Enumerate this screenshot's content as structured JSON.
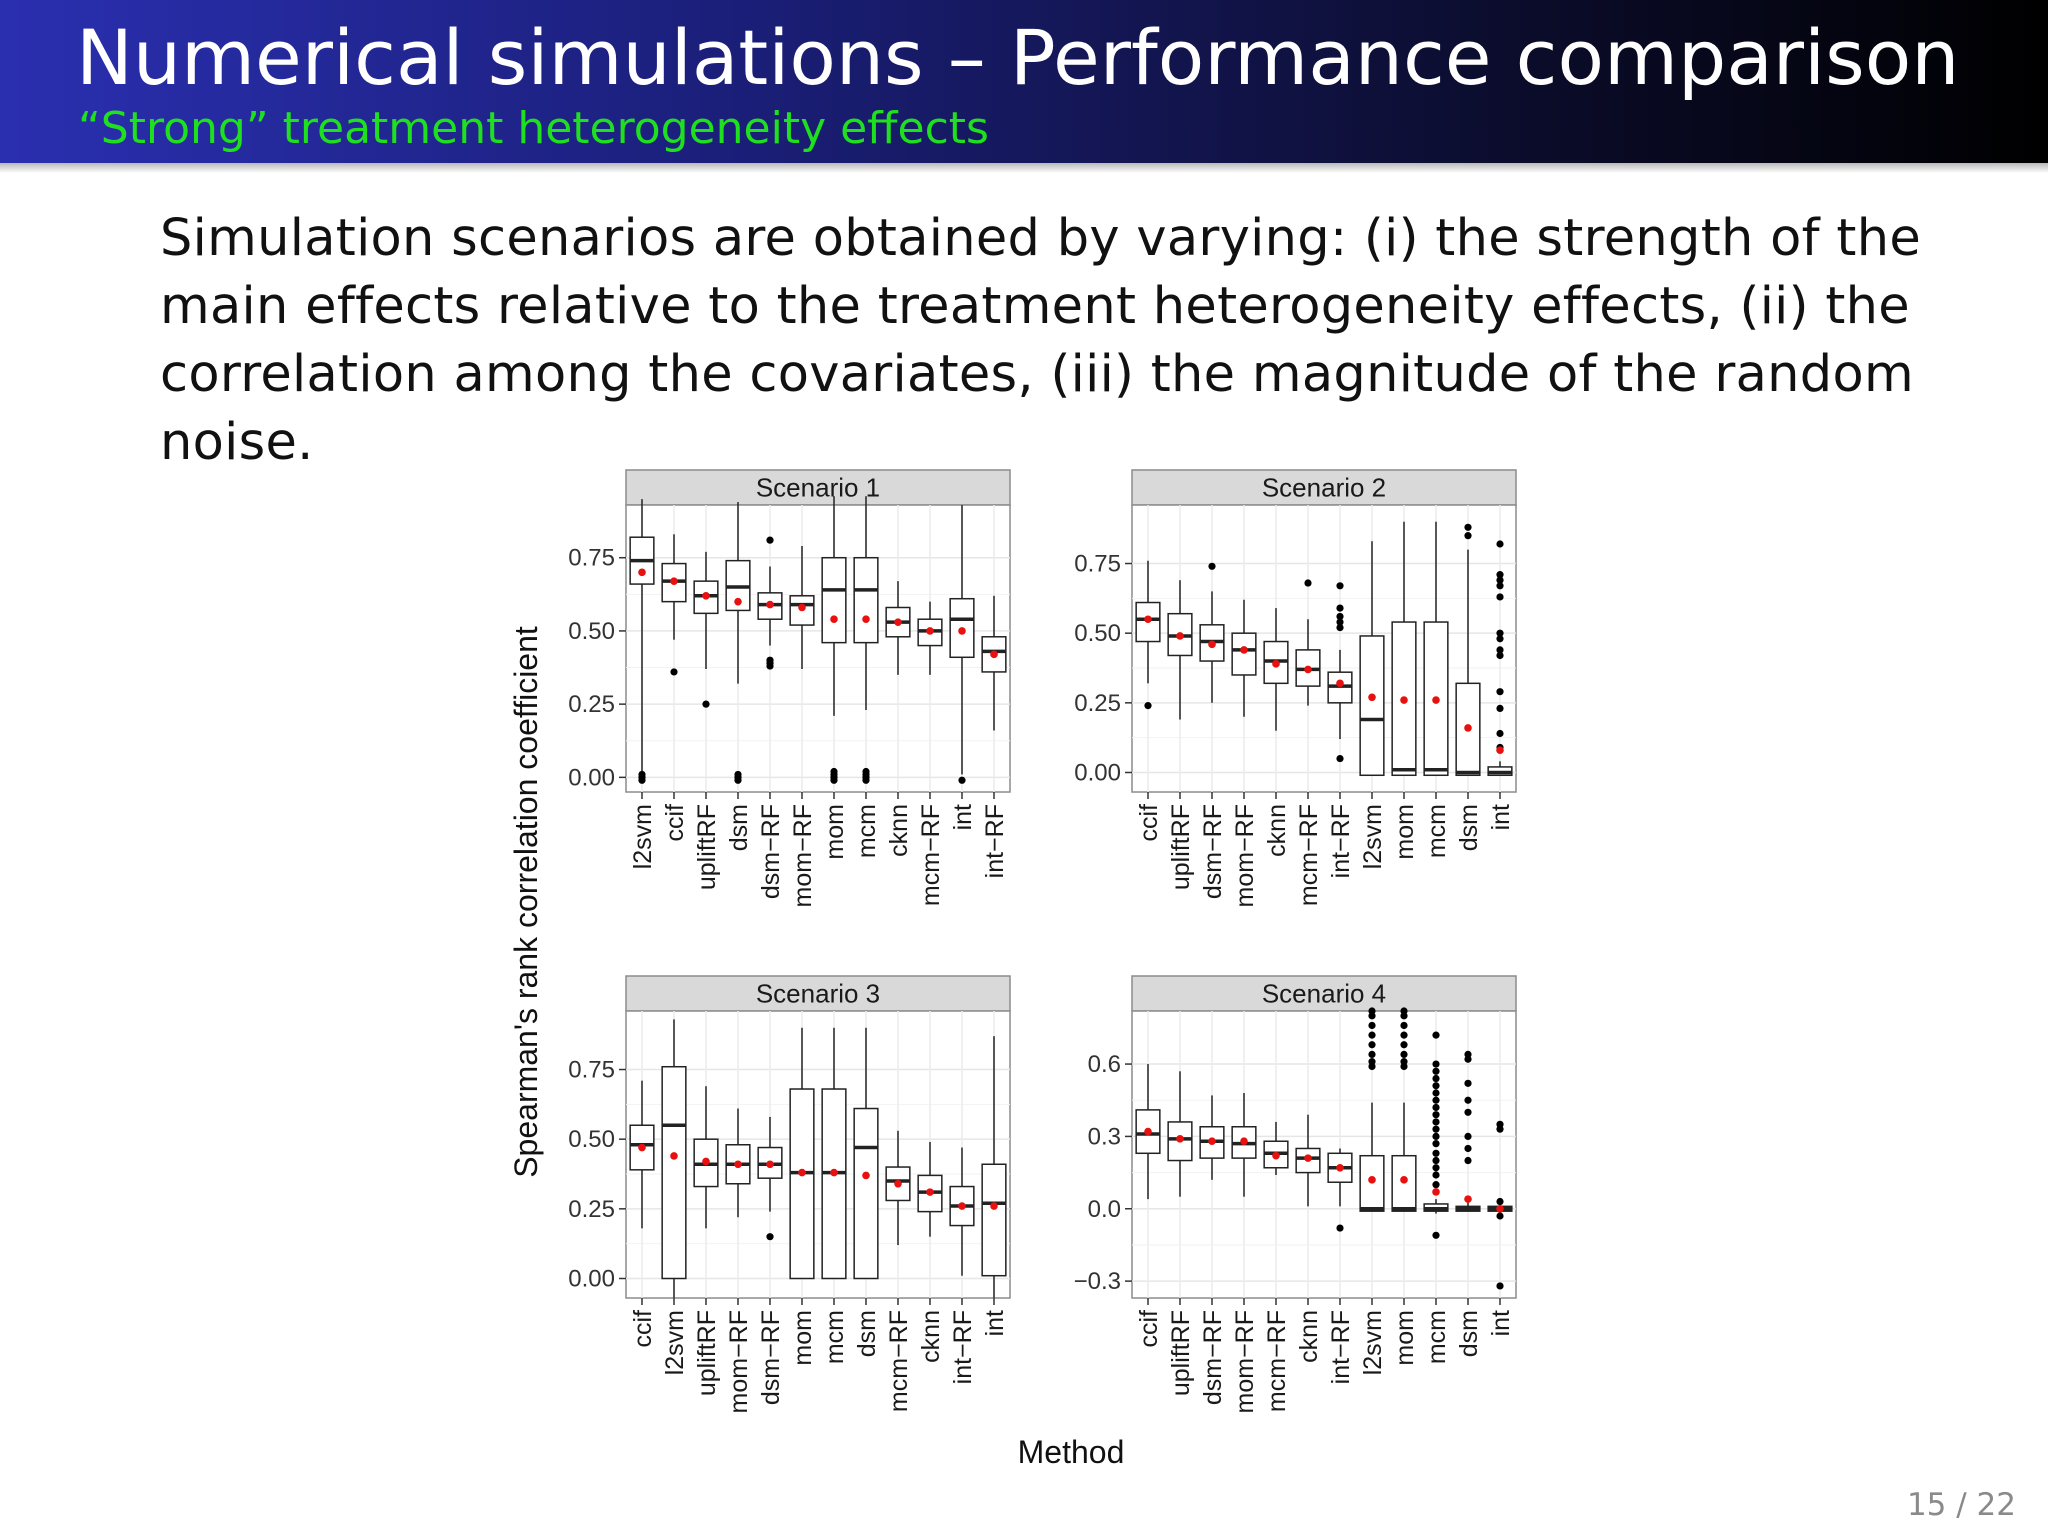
{
  "slide": {
    "title": "Numerical simulations – Performance comparison",
    "subtitle": "“Strong” treatment heterogeneity effects",
    "body": "Simulation scenarios are obtained by varying: (i) the strength of the main effects relative to the treatment heterogeneity effects, (ii) the correlation among the covariates, (iii) the magnitude of the random noise.",
    "page": "15 / 22"
  },
  "colors": {
    "header_start": "#2a2fb0",
    "header_end": "#000000",
    "subtitle": "#1fe01f",
    "mean_point": "#e8110f",
    "panel_strip": "#d9d9d9"
  },
  "chart_data": {
    "type": "boxplot",
    "ylabel": "Spearman's rank correlation coefficient",
    "xlabel": "Method",
    "grid": true,
    "panels": [
      {
        "title": "Scenario 1",
        "ylim": [
          -0.05,
          0.93
        ],
        "yticks": [
          0.0,
          0.25,
          0.5,
          0.75
        ],
        "ytick_labels": [
          "0.00",
          "0.25",
          "0.50",
          "0.75"
        ],
        "boxes": [
          {
            "method": "l2svm",
            "whislo": 0.0,
            "q1": 0.66,
            "median": 0.74,
            "q3": 0.82,
            "whishi": 0.95,
            "mean": 0.7,
            "outliers": [
              0.0,
              -0.01,
              0.01
            ]
          },
          {
            "method": "ccif",
            "whislo": 0.47,
            "q1": 0.6,
            "median": 0.67,
            "q3": 0.73,
            "whishi": 0.83,
            "mean": 0.67,
            "outliers": [
              0.36
            ]
          },
          {
            "method": "upliftRF",
            "whislo": 0.37,
            "q1": 0.56,
            "median": 0.62,
            "q3": 0.67,
            "whishi": 0.77,
            "mean": 0.62,
            "outliers": [
              0.25
            ]
          },
          {
            "method": "dsm",
            "whislo": 0.32,
            "q1": 0.57,
            "median": 0.65,
            "q3": 0.74,
            "whishi": 0.94,
            "mean": 0.6,
            "outliers": [
              0.0,
              0.01,
              -0.01
            ]
          },
          {
            "method": "dsm−RF",
            "whislo": 0.45,
            "q1": 0.54,
            "median": 0.59,
            "q3": 0.63,
            "whishi": 0.72,
            "mean": 0.59,
            "outliers": [
              0.81,
              0.38,
              0.39,
              0.4
            ]
          },
          {
            "method": "mom−RF",
            "whislo": 0.37,
            "q1": 0.52,
            "median": 0.59,
            "q3": 0.62,
            "whishi": 0.79,
            "mean": 0.58,
            "outliers": []
          },
          {
            "method": "mom",
            "whislo": 0.21,
            "q1": 0.46,
            "median": 0.64,
            "q3": 0.75,
            "whishi": 0.96,
            "mean": 0.54,
            "outliers": [
              0.0,
              0.01,
              -0.01,
              0.02
            ]
          },
          {
            "method": "mcm",
            "whislo": 0.23,
            "q1": 0.46,
            "median": 0.64,
            "q3": 0.75,
            "whishi": 0.96,
            "mean": 0.54,
            "outliers": [
              0.0,
              0.01,
              -0.01,
              0.02
            ]
          },
          {
            "method": "cknn",
            "whislo": 0.35,
            "q1": 0.48,
            "median": 0.53,
            "q3": 0.58,
            "whishi": 0.67,
            "mean": 0.53,
            "outliers": []
          },
          {
            "method": "mcm−RF",
            "whislo": 0.35,
            "q1": 0.45,
            "median": 0.5,
            "q3": 0.54,
            "whishi": 0.6,
            "mean": 0.5,
            "outliers": []
          },
          {
            "method": "int",
            "whislo": 0.01,
            "q1": 0.41,
            "median": 0.54,
            "q3": 0.61,
            "whishi": 0.93,
            "mean": 0.5,
            "outliers": [
              -0.01
            ]
          },
          {
            "method": "int−RF",
            "whislo": 0.16,
            "q1": 0.36,
            "median": 0.43,
            "q3": 0.48,
            "whishi": 0.62,
            "mean": 0.42,
            "outliers": []
          }
        ]
      },
      {
        "title": "Scenario 2",
        "ylim": [
          -0.07,
          0.96
        ],
        "yticks": [
          0.0,
          0.25,
          0.5,
          0.75
        ],
        "ytick_labels": [
          "0.00",
          "0.25",
          "0.50",
          "0.75"
        ],
        "boxes": [
          {
            "method": "ccif",
            "whislo": 0.32,
            "q1": 0.47,
            "median": 0.55,
            "q3": 0.61,
            "whishi": 0.76,
            "mean": 0.55,
            "outliers": [
              0.24
            ]
          },
          {
            "method": "upliftRF",
            "whislo": 0.19,
            "q1": 0.42,
            "median": 0.49,
            "q3": 0.57,
            "whishi": 0.69,
            "mean": 0.49,
            "outliers": []
          },
          {
            "method": "dsm−RF",
            "whislo": 0.25,
            "q1": 0.4,
            "median": 0.47,
            "q3": 0.53,
            "whishi": 0.65,
            "mean": 0.46,
            "outliers": [
              0.74
            ]
          },
          {
            "method": "mom−RF",
            "whislo": 0.2,
            "q1": 0.35,
            "median": 0.44,
            "q3": 0.5,
            "whishi": 0.62,
            "mean": 0.44,
            "outliers": []
          },
          {
            "method": "cknn",
            "whislo": 0.15,
            "q1": 0.32,
            "median": 0.4,
            "q3": 0.47,
            "whishi": 0.59,
            "mean": 0.39,
            "outliers": []
          },
          {
            "method": "mcm−RF",
            "whislo": 0.24,
            "q1": 0.31,
            "median": 0.37,
            "q3": 0.44,
            "whishi": 0.55,
            "mean": 0.37,
            "outliers": [
              0.68
            ]
          },
          {
            "method": "int−RF",
            "whislo": 0.12,
            "q1": 0.25,
            "median": 0.31,
            "q3": 0.36,
            "whishi": 0.44,
            "mean": 0.32,
            "outliers": [
              0.05,
              0.52,
              0.54,
              0.56,
              0.59,
              0.67
            ]
          },
          {
            "method": "l2svm",
            "whislo": -0.01,
            "q1": -0.01,
            "median": 0.19,
            "q3": 0.49,
            "whishi": 0.83,
            "mean": 0.27,
            "outliers": []
          },
          {
            "method": "mom",
            "whislo": -0.01,
            "q1": -0.01,
            "median": 0.01,
            "q3": 0.54,
            "whishi": 0.9,
            "mean": 0.26,
            "outliers": []
          },
          {
            "method": "mcm",
            "whislo": -0.01,
            "q1": -0.01,
            "median": 0.01,
            "q3": 0.54,
            "whishi": 0.9,
            "mean": 0.26,
            "outliers": []
          },
          {
            "method": "dsm",
            "whislo": -0.01,
            "q1": -0.01,
            "median": 0.0,
            "q3": 0.32,
            "whishi": 0.8,
            "mean": 0.16,
            "outliers": [
              0.85,
              0.88
            ]
          },
          {
            "method": "int",
            "whislo": -0.01,
            "q1": -0.01,
            "median": 0.0,
            "q3": 0.02,
            "whishi": 0.04,
            "mean": 0.08,
            "outliers": [
              0.09,
              0.14,
              0.23,
              0.29,
              0.42,
              0.44,
              0.48,
              0.5,
              0.63,
              0.67,
              0.69,
              0.71,
              0.82
            ]
          }
        ]
      },
      {
        "title": "Scenario 3",
        "ylim": [
          -0.07,
          0.96
        ],
        "yticks": [
          0.0,
          0.25,
          0.5,
          0.75
        ],
        "ytick_labels": [
          "0.00",
          "0.25",
          "0.50",
          "0.75"
        ],
        "boxes": [
          {
            "method": "ccif",
            "whislo": 0.18,
            "q1": 0.39,
            "median": 0.48,
            "q3": 0.55,
            "whishi": 0.71,
            "mean": 0.47,
            "outliers": []
          },
          {
            "method": "l2svm",
            "whislo": -0.07,
            "q1": 0.0,
            "median": 0.55,
            "q3": 0.76,
            "whishi": 0.93,
            "mean": 0.44,
            "outliers": []
          },
          {
            "method": "upliftRF",
            "whislo": 0.18,
            "q1": 0.33,
            "median": 0.41,
            "q3": 0.5,
            "whishi": 0.69,
            "mean": 0.42,
            "outliers": []
          },
          {
            "method": "mom−RF",
            "whislo": 0.22,
            "q1": 0.34,
            "median": 0.41,
            "q3": 0.48,
            "whishi": 0.61,
            "mean": 0.41,
            "outliers": []
          },
          {
            "method": "dsm−RF",
            "whislo": 0.24,
            "q1": 0.36,
            "median": 0.41,
            "q3": 0.47,
            "whishi": 0.58,
            "mean": 0.41,
            "outliers": [
              0.15
            ]
          },
          {
            "method": "mom",
            "whislo": 0.0,
            "q1": 0.0,
            "median": 0.38,
            "q3": 0.68,
            "whishi": 0.9,
            "mean": 0.38,
            "outliers": []
          },
          {
            "method": "mcm",
            "whislo": 0.0,
            "q1": 0.0,
            "median": 0.38,
            "q3": 0.68,
            "whishi": 0.9,
            "mean": 0.38,
            "outliers": []
          },
          {
            "method": "dsm",
            "whislo": 0.0,
            "q1": 0.0,
            "median": 0.47,
            "q3": 0.61,
            "whishi": 0.9,
            "mean": 0.37,
            "outliers": []
          },
          {
            "method": "mcm−RF",
            "whislo": 0.12,
            "q1": 0.28,
            "median": 0.35,
            "q3": 0.4,
            "whishi": 0.53,
            "mean": 0.34,
            "outliers": []
          },
          {
            "method": "cknn",
            "whislo": 0.15,
            "q1": 0.24,
            "median": 0.31,
            "q3": 0.37,
            "whishi": 0.49,
            "mean": 0.31,
            "outliers": []
          },
          {
            "method": "int−RF",
            "whislo": 0.01,
            "q1": 0.19,
            "median": 0.26,
            "q3": 0.33,
            "whishi": 0.47,
            "mean": 0.26,
            "outliers": []
          },
          {
            "method": "int",
            "whislo": -0.07,
            "q1": 0.01,
            "median": 0.27,
            "q3": 0.41,
            "whishi": 0.87,
            "mean": 0.26,
            "outliers": []
          }
        ]
      },
      {
        "title": "Scenario 4",
        "ylim": [
          -0.37,
          0.82
        ],
        "yticks": [
          -0.3,
          0.0,
          0.3,
          0.6
        ],
        "ytick_labels": [
          "−0.3",
          "0.0",
          "0.3",
          "0.6"
        ],
        "boxes": [
          {
            "method": "ccif",
            "whislo": 0.04,
            "q1": 0.23,
            "median": 0.31,
            "q3": 0.41,
            "whishi": 0.6,
            "mean": 0.32,
            "outliers": []
          },
          {
            "method": "upliftRF",
            "whislo": 0.05,
            "q1": 0.2,
            "median": 0.29,
            "q3": 0.36,
            "whishi": 0.57,
            "mean": 0.29,
            "outliers": []
          },
          {
            "method": "dsm−RF",
            "whislo": 0.12,
            "q1": 0.21,
            "median": 0.28,
            "q3": 0.34,
            "whishi": 0.47,
            "mean": 0.28,
            "outliers": []
          },
          {
            "method": "mom−RF",
            "whislo": 0.05,
            "q1": 0.21,
            "median": 0.27,
            "q3": 0.34,
            "whishi": 0.48,
            "mean": 0.28,
            "outliers": []
          },
          {
            "method": "mcm−RF",
            "whislo": 0.14,
            "q1": 0.17,
            "median": 0.23,
            "q3": 0.28,
            "whishi": 0.36,
            "mean": 0.22,
            "outliers": []
          },
          {
            "method": "cknn",
            "whislo": 0.01,
            "q1": 0.15,
            "median": 0.21,
            "q3": 0.25,
            "whishi": 0.39,
            "mean": 0.21,
            "outliers": []
          },
          {
            "method": "int−RF",
            "whislo": 0.01,
            "q1": 0.11,
            "median": 0.17,
            "q3": 0.23,
            "whishi": 0.25,
            "mean": 0.17,
            "outliers": [
              -0.08
            ]
          },
          {
            "method": "l2svm",
            "whislo": -0.01,
            "q1": -0.01,
            "median": 0.0,
            "q3": 0.22,
            "whishi": 0.44,
            "mean": 0.12,
            "outliers": [
              0.59,
              0.61,
              0.64,
              0.68,
              0.72,
              0.76,
              0.8,
              0.82
            ]
          },
          {
            "method": "mom",
            "whislo": -0.01,
            "q1": -0.01,
            "median": 0.0,
            "q3": 0.22,
            "whishi": 0.44,
            "mean": 0.12,
            "outliers": [
              0.59,
              0.61,
              0.64,
              0.68,
              0.72,
              0.76,
              0.8,
              0.82
            ]
          },
          {
            "method": "mcm",
            "whislo": -0.02,
            "q1": -0.01,
            "median": 0.0,
            "q3": 0.02,
            "whishi": 0.04,
            "mean": 0.07,
            "outliers": [
              -0.11,
              0.1,
              0.14,
              0.17,
              0.2,
              0.23,
              0.27,
              0.3,
              0.33,
              0.36,
              0.39,
              0.42,
              0.45,
              0.48,
              0.51,
              0.54,
              0.57,
              0.6,
              0.72
            ]
          },
          {
            "method": "dsm",
            "whislo": -0.01,
            "q1": -0.01,
            "median": 0.0,
            "q3": 0.01,
            "whishi": 0.03,
            "mean": 0.04,
            "outliers": [
              0.2,
              0.25,
              0.3,
              0.4,
              0.45,
              0.52,
              0.62,
              0.64
            ]
          },
          {
            "method": "int",
            "whislo": -0.01,
            "q1": -0.01,
            "median": 0.0,
            "q3": 0.01,
            "whishi": 0.02,
            "mean": 0.0,
            "outliers": [
              -0.03,
              0.03,
              0.33,
              0.35,
              -0.32
            ]
          }
        ]
      }
    ]
  }
}
